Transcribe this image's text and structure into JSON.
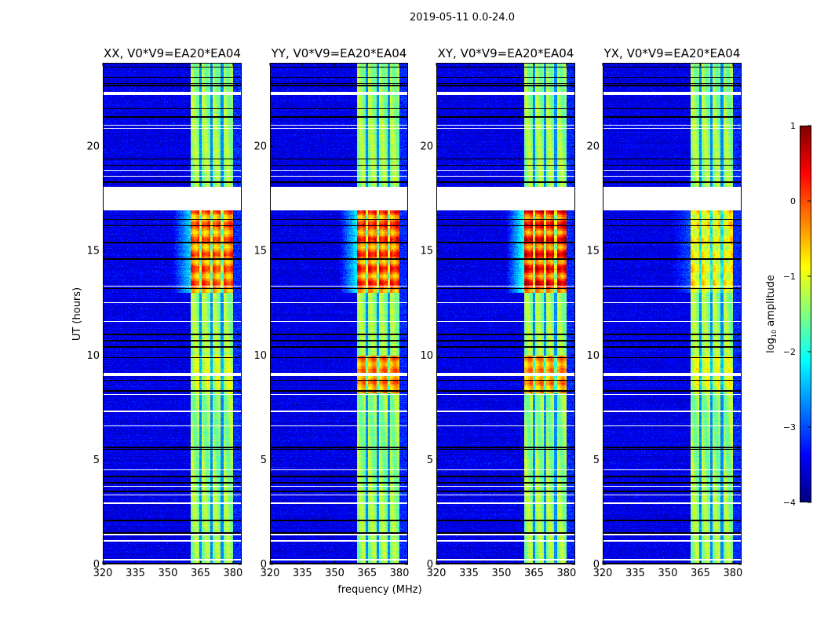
{
  "chart_data": {
    "type": "heatmap",
    "title": "2019-05-11 0.0-24.0",
    "xlabel": "frequency (MHz)",
    "ylabel": "UT (hours)",
    "xlim": [
      320,
      384
    ],
    "ylim": [
      0,
      24
    ],
    "xticks": [
      320,
      335,
      350,
      365,
      380
    ],
    "yticks": [
      0,
      5,
      10,
      15,
      20
    ],
    "colorbar": {
      "label_main": "log",
      "label_sub": "10",
      "label_rest": " amplitude",
      "clim": [
        -4,
        1
      ],
      "ticks": [
        1,
        0,
        -1,
        -2,
        -3,
        -4
      ],
      "tick_labels": [
        "1",
        "0",
        "−1",
        "−2",
        "−3",
        "−4"
      ],
      "colormap": "jet"
    },
    "band_MHz": [
      360.5,
      380
    ],
    "band_gaps_MHz": [
      365,
      370,
      375
    ],
    "background_log_amp": -3.5,
    "band_log_amp": -1.4,
    "flagged_hours": [
      [
        16.93,
        18.05
      ],
      [
        22.45,
        22.6
      ],
      [
        21.0,
        21.05
      ],
      [
        20.85,
        20.9
      ],
      [
        18.8,
        18.85
      ],
      [
        18.55,
        18.6
      ],
      [
        13.3,
        13.35
      ],
      [
        12.5,
        12.55
      ],
      [
        11.6,
        11.65
      ],
      [
        9.0,
        9.18
      ],
      [
        8.1,
        8.15
      ],
      [
        7.3,
        7.35
      ],
      [
        6.6,
        6.65
      ],
      [
        4.5,
        4.55
      ],
      [
        3.7,
        3.75
      ],
      [
        3.3,
        3.35
      ],
      [
        2.9,
        2.95
      ],
      [
        1.4,
        1.45
      ],
      [
        1.1,
        1.15
      ],
      [
        0.2,
        0.25
      ]
    ],
    "zero_hours": [
      23.8,
      23.3,
      23.0,
      22.9,
      21.8,
      21.4,
      19.4,
      19.1,
      18.3,
      16.5,
      16.2,
      15.4,
      14.6,
      13.2,
      11.0,
      10.7,
      10.4,
      9.9,
      8.8,
      8.3,
      5.6,
      5.5,
      4.2,
      3.9,
      3.5,
      2.1,
      1.5,
      0.05
    ],
    "panels": [
      {
        "title": "XX, V0*V9=EA20*EA04",
        "hot_13_17": 1.6,
        "hot_8_10": 0.3
      },
      {
        "title": "YY, V0*V9=EA20*EA04",
        "hot_13_17": 1.8,
        "hot_8_10": 1.3
      },
      {
        "title": "XY, V0*V9=EA20*EA04",
        "hot_13_17": 2.1,
        "hot_8_10": 1.2
      },
      {
        "title": "YX, V0*V9=EA20*EA04",
        "hot_13_17": 0.7,
        "hot_8_10": 0.4
      }
    ]
  }
}
